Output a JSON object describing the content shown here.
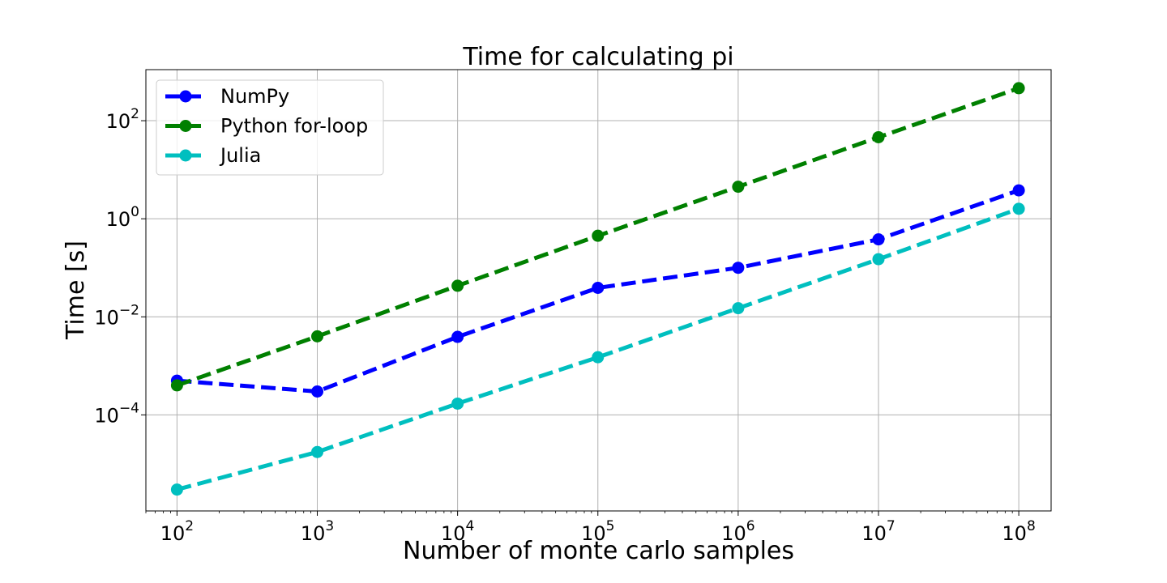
{
  "chart_data": {
    "type": "line",
    "title": "Time for calculating pi",
    "xlabel": "Number of monte carlo samples",
    "ylabel": "Time [s]",
    "xscale": "log",
    "yscale": "log",
    "xlim": [
      60,
      170000000
    ],
    "ylim": [
      1.1e-06,
      1100
    ],
    "grid": true,
    "legend_position": "top-left",
    "x": [
      100,
      1000,
      10000,
      100000,
      1000000,
      10000000,
      100000000
    ],
    "x_tick_labels": [
      {
        "value": 100,
        "base": "10",
        "exp": "2"
      },
      {
        "value": 1000,
        "base": "10",
        "exp": "3"
      },
      {
        "value": 10000,
        "base": "10",
        "exp": "4"
      },
      {
        "value": 100000,
        "base": "10",
        "exp": "5"
      },
      {
        "value": 1000000,
        "base": "10",
        "exp": "6"
      },
      {
        "value": 10000000,
        "base": "10",
        "exp": "7"
      },
      {
        "value": 100000000,
        "base": "10",
        "exp": "8"
      }
    ],
    "y_tick_labels": [
      {
        "value": 0.0001,
        "base": "10",
        "exp": "−4"
      },
      {
        "value": 0.01,
        "base": "10",
        "exp": "−2"
      },
      {
        "value": 1,
        "base": "10",
        "exp": "0"
      },
      {
        "value": 100,
        "base": "10",
        "exp": "2"
      }
    ],
    "series": [
      {
        "name": "NumPy",
        "color": "#0000ff",
        "values": [
          0.0005,
          0.0003,
          0.0039,
          0.039,
          0.1,
          0.38,
          3.8
        ]
      },
      {
        "name": "Python for-loop",
        "color": "#008000",
        "values": [
          0.0004,
          0.004,
          0.043,
          0.45,
          4.5,
          46,
          460
        ]
      },
      {
        "name": "Julia",
        "color": "#00bfbf",
        "values": [
          3e-06,
          1.75e-05,
          0.00017,
          0.0015,
          0.015,
          0.15,
          1.6
        ]
      }
    ]
  }
}
